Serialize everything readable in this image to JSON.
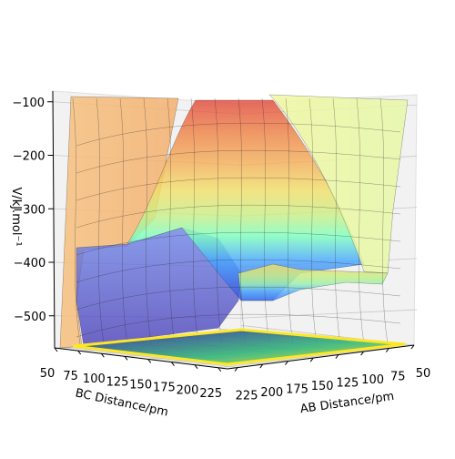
{
  "chart_data": {
    "type": "surface3d",
    "zlabel": "V/kJ.mol⁻¹",
    "xlabel": "BC Distance/pm",
    "ylabel": "AB Distance/pm",
    "ztick_labels": [
      "−100",
      "−200",
      "−300",
      "−400",
      "−500"
    ],
    "ztick_values": [
      -100,
      -200,
      -300,
      -400,
      -500
    ],
    "zlim": [
      -560,
      -80
    ],
    "xtick_labels": [
      "50",
      "75",
      "100",
      "125",
      "150",
      "175",
      "200",
      "225"
    ],
    "xtick_values": [
      50,
      75,
      100,
      125,
      150,
      175,
      200,
      225
    ],
    "ytick_labels": [
      "225",
      "200",
      "175",
      "150",
      "125",
      "100",
      "75",
      "50"
    ],
    "ytick_values": [
      225,
      200,
      175,
      150,
      125,
      100,
      75,
      50
    ],
    "xlim": [
      50,
      235
    ],
    "ylim": [
      50,
      235
    ],
    "colormap_surface": "jet",
    "colormap_contour": "viridis",
    "grid": true,
    "colors": {
      "surface_low": "#3b3bd6",
      "surface_mid": "#33aaff",
      "surface_green": "#7dffb0",
      "surface_yellow": "#f5e86a",
      "surface_orange": "#f6a95a",
      "surface_high": "#e8473a",
      "pane": "#f2f2f2",
      "contour_yellow": "#fde725",
      "contour_purple": "#440154"
    }
  }
}
